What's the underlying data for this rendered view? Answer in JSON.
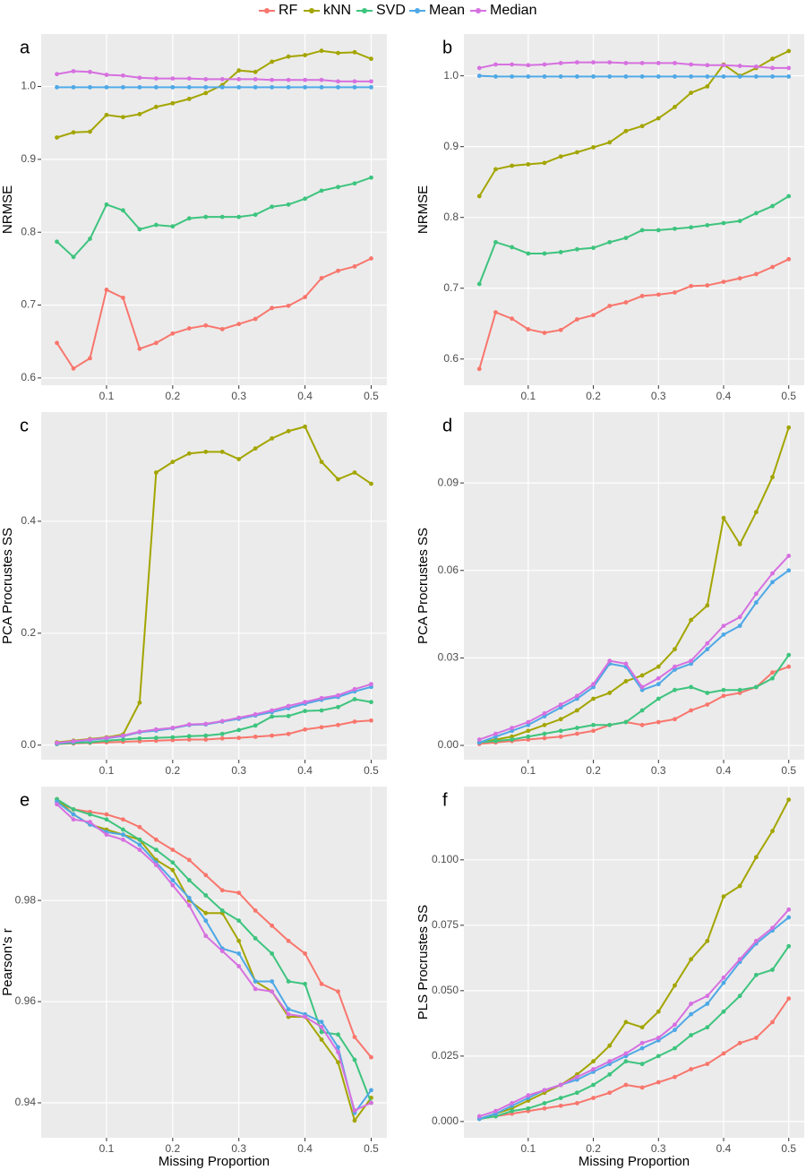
{
  "chart_data": [
    {
      "type": "line",
      "panel": "a",
      "y_label": "NRMSE",
      "legend": "top",
      "x": [
        0.025,
        0.05,
        0.075,
        0.1,
        0.125,
        0.15,
        0.175,
        0.2,
        0.225,
        0.25,
        0.275,
        0.3,
        0.325,
        0.35,
        0.375,
        0.4,
        0.425,
        0.45,
        0.475,
        0.5
      ],
      "xlim": [
        0.00125,
        0.52375
      ],
      "xticks": [
        0.1,
        0.2,
        0.3,
        0.4,
        0.5
      ],
      "ylim": [
        0.59,
        1.072
      ],
      "yticks": [
        0.6,
        0.7,
        0.8,
        0.9,
        {
          "value": 1,
          "label": "1.0"
        }
      ],
      "grid": true,
      "series": [
        {
          "name": "RF",
          "color": "#F8766D",
          "values": [
            0.648,
            0.613,
            0.627,
            0.721,
            0.71,
            0.64,
            0.648,
            0.661,
            0.668,
            0.672,
            0.667,
            0.674,
            0.681,
            0.696,
            0.699,
            0.711,
            0.737,
            0.747,
            0.753,
            0.764
          ]
        },
        {
          "name": "kNN",
          "color": "#A3A500",
          "values": [
            0.93,
            0.937,
            0.938,
            0.961,
            0.958,
            0.962,
            0.972,
            0.977,
            0.983,
            0.991,
            1.002,
            1.022,
            1.02,
            1.034,
            1.041,
            1.043,
            1.049,
            1.046,
            1.047,
            1.038
          ]
        },
        {
          "name": "SVD",
          "color": "#3DC47E",
          "values": [
            0.787,
            0.766,
            0.791,
            0.838,
            0.83,
            0.804,
            0.81,
            0.808,
            0.819,
            0.821,
            0.821,
            0.821,
            0.824,
            0.835,
            0.838,
            0.846,
            0.857,
            0.862,
            0.867,
            0.875
          ]
        },
        {
          "name": "Mean",
          "color": "#4EA8E6",
          "values": [
            0.999,
            0.999,
            0.999,
            0.999,
            0.999,
            0.999,
            0.999,
            0.999,
            0.999,
            0.999,
            0.999,
            0.999,
            0.999,
            0.999,
            0.999,
            0.999,
            0.999,
            0.999,
            0.999,
            0.999
          ]
        },
        {
          "name": "Median",
          "color": "#D670E0",
          "values": [
            1.017,
            1.021,
            1.02,
            1.016,
            1.015,
            1.012,
            1.011,
            1.011,
            1.011,
            1.01,
            1.01,
            1.01,
            1.01,
            1.009,
            1.009,
            1.009,
            1.009,
            1.007,
            1.007,
            1.007
          ]
        }
      ]
    },
    {
      "type": "line",
      "panel": "b",
      "y_label": "NRMSE",
      "x": [
        0.025,
        0.05,
        0.075,
        0.1,
        0.125,
        0.15,
        0.175,
        0.2,
        0.225,
        0.25,
        0.275,
        0.3,
        0.325,
        0.35,
        0.375,
        0.4,
        0.425,
        0.45,
        0.475,
        0.5
      ],
      "xlim": [
        0.00125,
        0.52375
      ],
      "xticks": [
        0.1,
        0.2,
        0.3,
        0.4,
        0.5
      ],
      "ylim": [
        0.563,
        1.059
      ],
      "yticks": [
        0.6,
        0.7,
        0.8,
        0.9,
        {
          "value": 1,
          "label": "1.0"
        }
      ],
      "grid": true,
      "series": [
        {
          "name": "RF",
          "color": "#F8766D",
          "values": [
            0.586,
            0.666,
            0.657,
            0.642,
            0.637,
            0.641,
            0.656,
            0.662,
            0.675,
            0.68,
            0.689,
            0.691,
            0.694,
            0.703,
            0.704,
            0.709,
            0.714,
            0.72,
            0.73,
            0.741
          ]
        },
        {
          "name": "kNN",
          "color": "#A3A500",
          "values": [
            0.83,
            0.868,
            0.873,
            0.875,
            0.877,
            0.886,
            0.892,
            0.899,
            0.906,
            0.922,
            0.929,
            0.94,
            0.956,
            0.976,
            0.985,
            1.016,
            1.0,
            1.011,
            1.024,
            1.035
          ]
        },
        {
          "name": "SVD",
          "color": "#3DC47E",
          "values": [
            0.706,
            0.765,
            0.758,
            0.749,
            0.749,
            0.751,
            0.755,
            0.757,
            0.765,
            0.771,
            0.782,
            0.782,
            0.784,
            0.786,
            0.789,
            0.792,
            0.795,
            0.806,
            0.816,
            0.83
          ]
        },
        {
          "name": "Mean",
          "color": "#4EA8E6",
          "values": [
            1.0,
            0.999,
            0.999,
            0.999,
            0.999,
            0.999,
            0.999,
            0.999,
            0.999,
            0.999,
            0.999,
            0.999,
            0.999,
            0.999,
            0.999,
            0.999,
            0.999,
            0.999,
            0.999,
            0.999
          ]
        },
        {
          "name": "Median",
          "color": "#D670E0",
          "values": [
            1.011,
            1.016,
            1.016,
            1.015,
            1.016,
            1.018,
            1.019,
            1.019,
            1.019,
            1.018,
            1.018,
            1.018,
            1.018,
            1.016,
            1.015,
            1.015,
            1.014,
            1.013,
            1.011,
            1.011
          ]
        }
      ]
    },
    {
      "type": "line",
      "panel": "c",
      "y_label": "PCA Procrustes SS",
      "x": [
        0.025,
        0.05,
        0.075,
        0.1,
        0.125,
        0.15,
        0.175,
        0.2,
        0.225,
        0.25,
        0.275,
        0.3,
        0.325,
        0.35,
        0.375,
        0.4,
        0.425,
        0.45,
        0.475,
        0.5
      ],
      "xlim": [
        0.00125,
        0.52375
      ],
      "xticks": [
        0.1,
        0.2,
        0.3,
        0.4,
        0.5
      ],
      "ylim": [
        -0.026,
        0.595
      ],
      "yticks": [
        {
          "value": 0,
          "label": "0.0"
        },
        0.2,
        0.4
      ],
      "grid": true,
      "series": [
        {
          "name": "RF",
          "color": "#F8766D",
          "values": [
            0.002,
            0.003,
            0.004,
            0.005,
            0.006,
            0.007,
            0.008,
            0.009,
            0.01,
            0.01,
            0.012,
            0.013,
            0.015,
            0.017,
            0.02,
            0.028,
            0.032,
            0.036,
            0.042,
            0.044
          ]
        },
        {
          "name": "kNN",
          "color": "#A3A500",
          "values": [
            0.005,
            0.008,
            0.011,
            0.014,
            0.019,
            0.076,
            0.487,
            0.506,
            0.521,
            0.524,
            0.524,
            0.511,
            0.53,
            0.548,
            0.561,
            0.569,
            0.506,
            0.475,
            0.487,
            0.467
          ]
        },
        {
          "name": "SVD",
          "color": "#3DC47E",
          "values": [
            0.002,
            0.004,
            0.005,
            0.008,
            0.01,
            0.012,
            0.013,
            0.014,
            0.016,
            0.017,
            0.02,
            0.027,
            0.035,
            0.051,
            0.052,
            0.061,
            0.062,
            0.068,
            0.082,
            0.077
          ]
        },
        {
          "name": "Mean",
          "color": "#4EA8E6",
          "values": [
            0.003,
            0.006,
            0.009,
            0.012,
            0.016,
            0.023,
            0.026,
            0.03,
            0.036,
            0.037,
            0.042,
            0.047,
            0.053,
            0.059,
            0.066,
            0.074,
            0.081,
            0.086,
            0.096,
            0.104
          ]
        },
        {
          "name": "Median",
          "color": "#D670E0",
          "values": [
            0.004,
            0.007,
            0.01,
            0.013,
            0.017,
            0.024,
            0.028,
            0.031,
            0.037,
            0.038,
            0.043,
            0.049,
            0.055,
            0.062,
            0.07,
            0.077,
            0.084,
            0.089,
            0.1,
            0.109
          ]
        }
      ]
    },
    {
      "type": "line",
      "panel": "d",
      "y_label": "PCA Procrustes SS",
      "x": [
        0.025,
        0.05,
        0.075,
        0.1,
        0.125,
        0.15,
        0.175,
        0.2,
        0.225,
        0.25,
        0.275,
        0.3,
        0.325,
        0.35,
        0.375,
        0.4,
        0.425,
        0.45,
        0.475,
        0.5
      ],
      "xlim": [
        0.00125,
        0.52375
      ],
      "xticks": [
        0.1,
        0.2,
        0.3,
        0.4,
        0.5
      ],
      "ylim": [
        -0.0049,
        0.1143
      ],
      "yticks": [
        {
          "value": 0,
          "label": "0.00"
        },
        {
          "value": 0.03,
          "label": "0.03"
        },
        {
          "value": 0.06,
          "label": "0.06"
        },
        {
          "value": 0.09,
          "label": "0.09"
        }
      ],
      "grid": true,
      "series": [
        {
          "name": "RF",
          "color": "#F8766D",
          "values": [
            0.0005,
            0.001,
            0.0015,
            0.002,
            0.0025,
            0.003,
            0.004,
            0.005,
            0.007,
            0.008,
            0.007,
            0.008,
            0.009,
            0.012,
            0.014,
            0.017,
            0.018,
            0.02,
            0.025,
            0.027
          ]
        },
        {
          "name": "kNN",
          "color": "#A3A500",
          "values": [
            0.001,
            0.002,
            0.003,
            0.005,
            0.007,
            0.009,
            0.012,
            0.016,
            0.018,
            0.022,
            0.024,
            0.027,
            0.033,
            0.043,
            0.048,
            0.078,
            0.069,
            0.08,
            0.092,
            0.109
          ]
        },
        {
          "name": "SVD",
          "color": "#3DC47E",
          "values": [
            0.001,
            0.0015,
            0.002,
            0.003,
            0.004,
            0.005,
            0.006,
            0.007,
            0.007,
            0.008,
            0.012,
            0.016,
            0.019,
            0.02,
            0.018,
            0.019,
            0.019,
            0.02,
            0.023,
            0.031
          ]
        },
        {
          "name": "Mean",
          "color": "#4EA8E6",
          "values": [
            0.001,
            0.003,
            0.005,
            0.007,
            0.01,
            0.013,
            0.016,
            0.02,
            0.028,
            0.027,
            0.019,
            0.021,
            0.026,
            0.028,
            0.033,
            0.038,
            0.041,
            0.049,
            0.056,
            0.06
          ]
        },
        {
          "name": "Median",
          "color": "#D670E0",
          "values": [
            0.002,
            0.004,
            0.006,
            0.008,
            0.011,
            0.014,
            0.017,
            0.021,
            0.029,
            0.028,
            0.02,
            0.023,
            0.027,
            0.029,
            0.035,
            0.041,
            0.044,
            0.052,
            0.059,
            0.065
          ]
        }
      ]
    },
    {
      "type": "line",
      "panel": "e",
      "y_label": "Pearson's r",
      "x_label": "Missing Proportion",
      "x": [
        0.025,
        0.05,
        0.075,
        0.1,
        0.125,
        0.15,
        0.175,
        0.2,
        0.225,
        0.25,
        0.275,
        0.3,
        0.325,
        0.35,
        0.375,
        0.4,
        0.425,
        0.45,
        0.475,
        0.5
      ],
      "xlim": [
        0.00125,
        0.52375
      ],
      "xticks": [
        0.1,
        0.2,
        0.3,
        0.4,
        0.5
      ],
      "ylim": [
        0.9331,
        1.0025
      ],
      "yticks": [
        0.94,
        0.96,
        0.98
      ],
      "grid": true,
      "series": [
        {
          "name": "RF",
          "color": "#F8766D",
          "values": [
            0.9995,
            0.998,
            0.9975,
            0.997,
            0.996,
            0.9945,
            0.992,
            0.99,
            0.988,
            0.985,
            0.982,
            0.9815,
            0.978,
            0.975,
            0.972,
            0.9695,
            0.9635,
            0.962,
            0.953,
            0.949
          ]
        },
        {
          "name": "kNN",
          "color": "#A3A500",
          "values": [
            1.0,
            0.997,
            0.995,
            0.994,
            0.993,
            0.992,
            0.988,
            0.986,
            0.98,
            0.9775,
            0.9775,
            0.972,
            0.964,
            0.962,
            0.957,
            0.957,
            0.9525,
            0.948,
            0.9365,
            0.941
          ]
        },
        {
          "name": "SVD",
          "color": "#3DC47E",
          "values": [
            1.0,
            0.998,
            0.997,
            0.996,
            0.994,
            0.992,
            0.99,
            0.9875,
            0.984,
            0.981,
            0.978,
            0.976,
            0.9725,
            0.9695,
            0.964,
            0.9635,
            0.954,
            0.9535,
            0.9485,
            0.94
          ]
        },
        {
          "name": "Mean",
          "color": "#4EA8E6",
          "values": [
            0.9995,
            0.997,
            0.995,
            0.9935,
            0.993,
            0.991,
            0.9875,
            0.984,
            0.9805,
            0.976,
            0.9705,
            0.9695,
            0.964,
            0.964,
            0.9585,
            0.9575,
            0.956,
            0.951,
            0.938,
            0.9425
          ]
        },
        {
          "name": "Median",
          "color": "#D670E0",
          "values": [
            0.999,
            0.996,
            0.9955,
            0.993,
            0.992,
            0.99,
            0.987,
            0.983,
            0.979,
            0.973,
            0.97,
            0.967,
            0.9625,
            0.962,
            0.9575,
            0.957,
            0.955,
            0.95,
            0.9385,
            0.94
          ]
        }
      ]
    },
    {
      "type": "line",
      "panel": "f",
      "y_label": "PLS Procrustes SS",
      "x_label": "Missing Proportion",
      "x": [
        0.025,
        0.05,
        0.075,
        0.1,
        0.125,
        0.15,
        0.175,
        0.2,
        0.225,
        0.25,
        0.275,
        0.3,
        0.325,
        0.35,
        0.375,
        0.4,
        0.425,
        0.45,
        0.475,
        0.5
      ],
      "xlim": [
        0.00125,
        0.52375
      ],
      "xticks": [
        0.1,
        0.2,
        0.3,
        0.4,
        0.5
      ],
      "ylim": [
        -0.0062,
        0.128
      ],
      "yticks": [
        {
          "value": 0,
          "label": "0.000"
        },
        0.025,
        {
          "value": 0.05,
          "label": "0.050"
        },
        0.075,
        {
          "value": 0.1,
          "label": "0.100"
        }
      ],
      "grid": true,
      "series": [
        {
          "name": "RF",
          "color": "#F8766D",
          "values": [
            0.001,
            0.002,
            0.003,
            0.004,
            0.005,
            0.006,
            0.007,
            0.009,
            0.011,
            0.014,
            0.013,
            0.015,
            0.017,
            0.02,
            0.022,
            0.026,
            0.03,
            0.032,
            0.038,
            0.047
          ]
        },
        {
          "name": "kNN",
          "color": "#A3A500",
          "values": [
            0.001,
            0.003,
            0.005,
            0.008,
            0.011,
            0.014,
            0.018,
            0.023,
            0.029,
            0.038,
            0.036,
            0.042,
            0.052,
            0.062,
            0.069,
            0.086,
            0.09,
            0.101,
            0.111,
            0.123
          ]
        },
        {
          "name": "SVD",
          "color": "#3DC47E",
          "values": [
            0.001,
            0.002,
            0.004,
            0.005,
            0.007,
            0.009,
            0.011,
            0.014,
            0.018,
            0.023,
            0.022,
            0.025,
            0.028,
            0.033,
            0.036,
            0.042,
            0.048,
            0.056,
            0.058,
            0.067
          ]
        },
        {
          "name": "Mean",
          "color": "#4EA8E6",
          "values": [
            0.001,
            0.003,
            0.006,
            0.009,
            0.012,
            0.014,
            0.016,
            0.019,
            0.022,
            0.025,
            0.028,
            0.031,
            0.035,
            0.041,
            0.045,
            0.053,
            0.061,
            0.068,
            0.073,
            0.078
          ]
        },
        {
          "name": "Median",
          "color": "#D670E0",
          "values": [
            0.002,
            0.004,
            0.007,
            0.01,
            0.012,
            0.014,
            0.017,
            0.02,
            0.023,
            0.026,
            0.03,
            0.032,
            0.037,
            0.045,
            0.048,
            0.055,
            0.062,
            0.069,
            0.074,
            0.081
          ]
        }
      ]
    }
  ]
}
